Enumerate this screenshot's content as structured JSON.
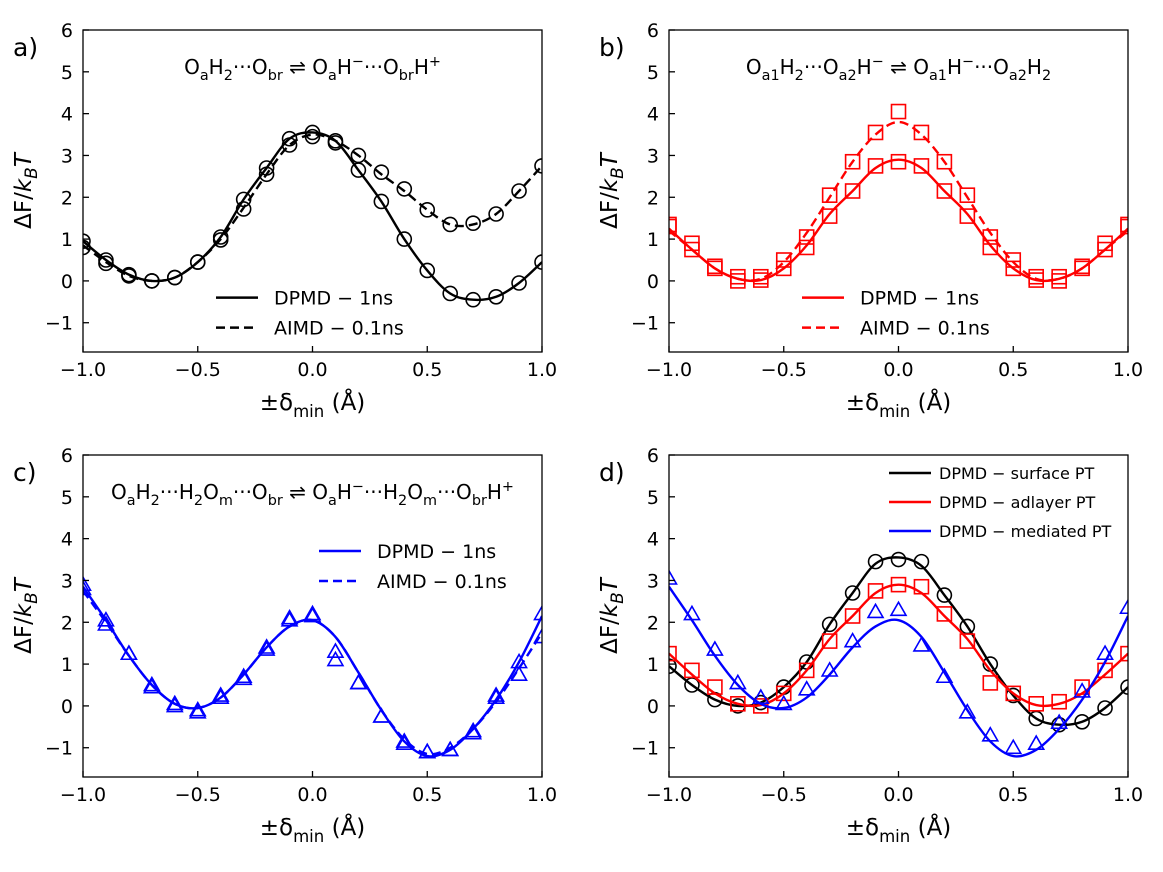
{
  "figure": {
    "axis_common": {
      "xlabel": "±δ",
      "xlabel_sub": "min",
      "xlabel_unit": " (Å)",
      "ylabel": "ΔF/k",
      "ylabel_sub": "B",
      "ylabel_tail": "T",
      "xticks": [
        "−1.0",
        "−0.5",
        "0.0",
        "0.5",
        "1.0"
      ],
      "yticks": [
        "−1",
        "0",
        "1",
        "2",
        "3",
        "4",
        "5",
        "6"
      ]
    }
  },
  "chart_data": [
    {
      "id": "a",
      "panel_label": "a)",
      "type": "line",
      "equation": [
        {
          "t": "O"
        },
        {
          "t": "a",
          "s": "sub"
        },
        {
          "t": "H"
        },
        {
          "t": "2",
          "s": "sub"
        },
        {
          "t": "···O"
        },
        {
          "t": "br",
          "s": "sub"
        },
        {
          "t": " ⇌ "
        },
        {
          "t": "O"
        },
        {
          "t": "a",
          "s": "sub"
        },
        {
          "t": "H"
        },
        {
          "t": "−",
          "s": "sup"
        },
        {
          "t": "···O"
        },
        {
          "t": "br",
          "s": "sub"
        },
        {
          "t": "H"
        },
        {
          "t": "+",
          "s": "sup"
        }
      ],
      "xlim": [
        -1.0,
        1.0
      ],
      "ylim": [
        -1.7,
        6.0
      ],
      "legend": {
        "position": "lower-center",
        "entries": [
          "DPMD − 1ns",
          "AIMD − 0.1ns"
        ]
      },
      "series": [
        {
          "name": "DPMD − 1ns",
          "color": "#000000",
          "dash": "solid",
          "marker": "circle",
          "x": [
            -1.0,
            -0.9,
            -0.8,
            -0.7,
            -0.6,
            -0.5,
            -0.4,
            -0.3,
            -0.2,
            -0.1,
            0.0,
            0.1,
            0.2,
            0.3,
            0.4,
            0.5,
            0.6,
            0.7,
            0.8,
            0.9,
            1.0
          ],
          "y": [
            0.95,
            0.5,
            0.15,
            0.0,
            0.08,
            0.45,
            1.05,
            1.95,
            2.7,
            3.4,
            3.55,
            3.35,
            2.65,
            1.9,
            1.0,
            0.25,
            -0.3,
            -0.45,
            -0.38,
            -0.05,
            0.45
          ],
          "markers": [
            0.95,
            0.5,
            0.15,
            0.0,
            0.08,
            0.45,
            1.05,
            1.95,
            2.7,
            3.4,
            3.55,
            3.35,
            2.65,
            1.9,
            1.0,
            0.25,
            -0.3,
            -0.45,
            -0.38,
            -0.05,
            0.45
          ]
        },
        {
          "name": "AIMD − 0.1ns",
          "color": "#000000",
          "dash": "dashed",
          "marker": "circle",
          "x": [
            -1.0,
            -0.9,
            -0.8,
            -0.7,
            -0.6,
            -0.5,
            -0.4,
            -0.3,
            -0.2,
            -0.1,
            0.0,
            0.1,
            0.2,
            0.3,
            0.4,
            0.5,
            0.6,
            0.7,
            0.8,
            0.9,
            1.0
          ],
          "y": [
            0.85,
            0.45,
            0.12,
            0.0,
            0.08,
            0.45,
            1.0,
            1.75,
            2.55,
            3.25,
            3.5,
            3.35,
            3.0,
            2.55,
            2.15,
            1.7,
            1.35,
            1.35,
            1.6,
            2.15,
            2.75
          ],
          "markers": [
            0.8,
            0.42,
            0.12,
            0.0,
            0.08,
            0.45,
            0.98,
            1.72,
            2.55,
            3.25,
            3.45,
            3.3,
            3.0,
            2.6,
            2.2,
            1.7,
            1.35,
            1.38,
            1.6,
            2.15,
            2.75
          ]
        }
      ]
    },
    {
      "id": "b",
      "panel_label": "b)",
      "type": "line",
      "equation": [
        {
          "t": "O"
        },
        {
          "t": "a1",
          "s": "sub"
        },
        {
          "t": "H"
        },
        {
          "t": "2",
          "s": "sub"
        },
        {
          "t": "···O"
        },
        {
          "t": "a2",
          "s": "sub"
        },
        {
          "t": "H"
        },
        {
          "t": "−",
          "s": "sup"
        },
        {
          "t": " ⇌ "
        },
        {
          "t": "O"
        },
        {
          "t": "a1",
          "s": "sub"
        },
        {
          "t": "H"
        },
        {
          "t": "−",
          "s": "sup"
        },
        {
          "t": "···O"
        },
        {
          "t": "a2",
          "s": "sub"
        },
        {
          "t": "H"
        },
        {
          "t": "2",
          "s": "sub"
        }
      ],
      "xlim": [
        -1.0,
        1.0
      ],
      "ylim": [
        -1.7,
        6.0
      ],
      "legend": {
        "position": "lower-center",
        "entries": [
          "DPMD − 1ns",
          "AIMD − 0.1ns"
        ]
      },
      "series": [
        {
          "name": "DPMD − 1ns",
          "color": "#ff0000",
          "dash": "solid",
          "marker": "square",
          "x": [
            -1.0,
            -0.9,
            -0.8,
            -0.7,
            -0.6,
            -0.5,
            -0.4,
            -0.3,
            -0.2,
            -0.1,
            0.0,
            0.1,
            0.2,
            0.3,
            0.4,
            0.5,
            0.6,
            0.7,
            0.8,
            0.9,
            1.0
          ],
          "y": [
            1.25,
            0.75,
            0.3,
            0.05,
            0.02,
            0.3,
            0.85,
            1.6,
            2.15,
            2.7,
            2.9,
            2.7,
            2.15,
            1.6,
            0.85,
            0.3,
            0.02,
            0.05,
            0.3,
            0.75,
            1.25
          ],
          "markers": [
            1.3,
            0.75,
            0.3,
            0.0,
            0.02,
            0.3,
            0.8,
            1.55,
            2.15,
            2.75,
            2.85,
            2.75,
            2.15,
            1.55,
            0.8,
            0.3,
            0.02,
            0.0,
            0.3,
            0.75,
            1.3
          ]
        },
        {
          "name": "AIMD − 0.1ns",
          "color": "#ff0000",
          "dash": "dashed",
          "marker": "square",
          "x": [
            -1.0,
            -0.9,
            -0.8,
            -0.7,
            -0.6,
            -0.5,
            -0.4,
            -0.3,
            -0.2,
            -0.1,
            0.0,
            0.1,
            0.2,
            0.3,
            0.4,
            0.5,
            0.6,
            0.7,
            0.8,
            0.9,
            1.0
          ],
          "y": [
            1.2,
            0.75,
            0.3,
            0.05,
            0.05,
            0.45,
            1.15,
            2.0,
            2.85,
            3.5,
            3.8,
            3.5,
            2.85,
            2.0,
            1.15,
            0.45,
            0.05,
            0.05,
            0.3,
            0.75,
            1.2
          ],
          "markers": [
            1.35,
            0.9,
            0.35,
            0.1,
            0.1,
            0.5,
            1.05,
            2.05,
            2.85,
            3.55,
            4.05,
            3.55,
            2.85,
            2.05,
            1.05,
            0.5,
            0.1,
            0.1,
            0.35,
            0.9,
            1.35
          ]
        }
      ]
    },
    {
      "id": "c",
      "panel_label": "c)",
      "type": "line",
      "equation": [
        {
          "t": "O"
        },
        {
          "t": "a",
          "s": "sub"
        },
        {
          "t": "H"
        },
        {
          "t": "2",
          "s": "sub"
        },
        {
          "t": "···H"
        },
        {
          "t": "2",
          "s": "sub"
        },
        {
          "t": "O"
        },
        {
          "t": "m",
          "s": "sub"
        },
        {
          "t": "···O"
        },
        {
          "t": "br",
          "s": "sub"
        },
        {
          "t": " ⇌ "
        },
        {
          "t": "O"
        },
        {
          "t": "a",
          "s": "sub"
        },
        {
          "t": "H"
        },
        {
          "t": "−",
          "s": "sup"
        },
        {
          "t": "···H"
        },
        {
          "t": "2",
          "s": "sub"
        },
        {
          "t": "O"
        },
        {
          "t": "m",
          "s": "sub"
        },
        {
          "t": "···O"
        },
        {
          "t": "br",
          "s": "sub"
        },
        {
          "t": "H"
        },
        {
          "t": "+",
          "s": "sup"
        }
      ],
      "xlim": [
        -1.0,
        1.0
      ],
      "ylim": [
        -1.7,
        6.0
      ],
      "legend": {
        "position": "upper-right",
        "entries": [
          "DPMD − 1ns",
          "AIMD − 0.1ns"
        ]
      },
      "series": [
        {
          "name": "DPMD − 1ns",
          "color": "#0000ff",
          "dash": "solid",
          "marker": "triangle",
          "x": [
            -1.0,
            -0.9,
            -0.8,
            -0.7,
            -0.6,
            -0.5,
            -0.4,
            -0.3,
            -0.2,
            -0.1,
            0.0,
            0.1,
            0.2,
            0.3,
            0.4,
            0.5,
            0.6,
            0.7,
            0.8,
            0.9,
            1.0
          ],
          "y": [
            2.85,
            2.05,
            1.2,
            0.5,
            0.05,
            -0.05,
            0.2,
            0.75,
            1.4,
            1.9,
            2.05,
            1.65,
            0.8,
            -0.1,
            -0.85,
            -1.2,
            -1.05,
            -0.55,
            0.15,
            1.05,
            2.15
          ],
          "markers": [
            2.9,
            2.05,
            1.25,
            0.5,
            0.05,
            -0.1,
            0.2,
            0.7,
            1.4,
            2.05,
            2.2,
            1.3,
            0.55,
            -0.25,
            -0.85,
            -1.1,
            -1.05,
            -0.65,
            0.2,
            1.05,
            2.2
          ]
        },
        {
          "name": "AIMD − 0.1ns",
          "color": "#0000ff",
          "dash": "dashed",
          "marker": "triangle",
          "x": [
            -1.0,
            -0.9,
            -0.8,
            -0.7,
            -0.6,
            -0.5,
            -0.4,
            -0.3,
            -0.2,
            -0.1,
            0.0,
            0.1,
            0.2,
            0.3,
            0.4,
            0.5,
            0.6,
            0.7,
            0.8,
            0.9,
            1.0
          ],
          "y": [
            2.75,
            2.0,
            1.2,
            0.5,
            0.05,
            -0.05,
            0.2,
            0.75,
            1.4,
            1.9,
            2.05,
            1.65,
            0.8,
            -0.1,
            -0.8,
            -1.15,
            -1.0,
            -0.55,
            0.1,
            0.9,
            1.75
          ],
          "markers": [
            2.8,
            1.95,
            1.25,
            0.45,
            0.0,
            -0.15,
            0.25,
            0.65,
            1.35,
            2.1,
            2.15,
            1.1,
            0.55,
            -0.25,
            -0.9,
            -1.1,
            -1.05,
            -0.6,
            0.25,
            0.75,
            1.65
          ]
        }
      ]
    },
    {
      "id": "d",
      "panel_label": "d)",
      "type": "line",
      "equation": [],
      "xlim": [
        -1.0,
        1.0
      ],
      "ylim": [
        -1.7,
        6.0
      ],
      "legend": {
        "position": "upper-right",
        "entries": [
          "DPMD − surface PT",
          "DPMD − adlayer PT",
          "DPMD − mediated PT"
        ]
      },
      "series": [
        {
          "name": "DPMD − surface PT",
          "color": "#000000",
          "dash": "solid",
          "marker": "circle",
          "x": [
            -1.0,
            -0.9,
            -0.8,
            -0.7,
            -0.6,
            -0.5,
            -0.4,
            -0.3,
            -0.2,
            -0.1,
            0.0,
            0.1,
            0.2,
            0.3,
            0.4,
            0.5,
            0.6,
            0.7,
            0.8,
            0.9,
            1.0
          ],
          "y": [
            0.95,
            0.5,
            0.15,
            0.0,
            0.08,
            0.45,
            1.05,
            1.95,
            2.7,
            3.4,
            3.55,
            3.35,
            2.65,
            1.9,
            1.0,
            0.25,
            -0.3,
            -0.45,
            -0.38,
            -0.05,
            0.45
          ],
          "markers": [
            0.95,
            0.5,
            0.15,
            0.0,
            0.08,
            0.45,
            1.05,
            1.95,
            2.7,
            3.45,
            3.5,
            3.45,
            2.65,
            1.9,
            1.0,
            0.25,
            -0.3,
            -0.45,
            -0.38,
            -0.05,
            0.45
          ]
        },
        {
          "name": "DPMD − adlayer PT",
          "color": "#ff0000",
          "dash": "solid",
          "marker": "square",
          "x": [
            -1.0,
            -0.9,
            -0.8,
            -0.7,
            -0.6,
            -0.5,
            -0.4,
            -0.3,
            -0.2,
            -0.1,
            0.0,
            0.1,
            0.2,
            0.3,
            0.4,
            0.5,
            0.6,
            0.7,
            0.8,
            0.9,
            1.0
          ],
          "y": [
            1.25,
            0.75,
            0.3,
            0.05,
            0.02,
            0.3,
            0.85,
            1.6,
            2.15,
            2.7,
            2.9,
            2.7,
            2.15,
            1.6,
            0.85,
            0.3,
            0.02,
            0.05,
            0.3,
            0.75,
            1.25
          ],
          "markers": [
            1.25,
            0.85,
            0.45,
            0.05,
            0.0,
            0.3,
            0.85,
            1.55,
            2.15,
            2.75,
            2.9,
            2.85,
            2.2,
            1.55,
            0.55,
            0.3,
            0.05,
            0.1,
            0.45,
            0.85,
            1.25
          ]
        },
        {
          "name": "DPMD − mediated PT",
          "color": "#0000ff",
          "dash": "solid",
          "marker": "triangle",
          "x": [
            -1.0,
            -0.9,
            -0.8,
            -0.7,
            -0.6,
            -0.5,
            -0.4,
            -0.3,
            -0.2,
            -0.1,
            0.0,
            0.1,
            0.2,
            0.3,
            0.4,
            0.5,
            0.6,
            0.7,
            0.8,
            0.9,
            1.0
          ],
          "y": [
            2.85,
            2.05,
            1.2,
            0.5,
            0.05,
            -0.05,
            0.2,
            0.75,
            1.4,
            1.9,
            2.05,
            1.65,
            0.8,
            -0.1,
            -0.85,
            -1.2,
            -1.05,
            -0.55,
            0.15,
            1.05,
            2.15
          ],
          "markers": [
            3.05,
            2.2,
            1.35,
            0.55,
            0.2,
            0.05,
            0.4,
            0.85,
            1.55,
            2.25,
            2.3,
            1.45,
            0.7,
            -0.15,
            -0.7,
            -1.0,
            -0.9,
            -0.4,
            0.35,
            1.25,
            2.35
          ]
        }
      ]
    }
  ]
}
